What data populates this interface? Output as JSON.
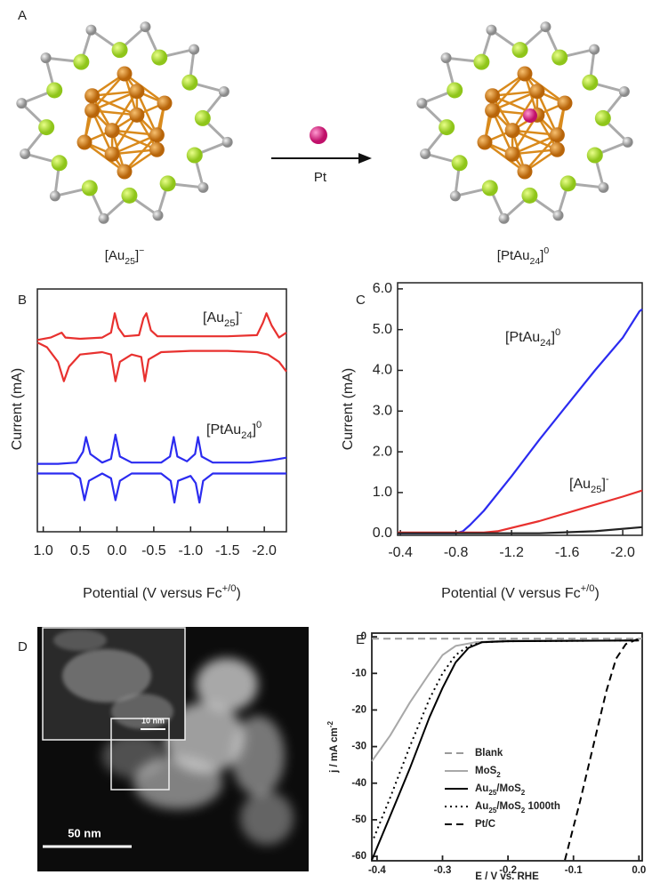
{
  "panel_a": {
    "label": "A",
    "left_label": [
      "[Au",
      "25",
      "]",
      "−"
    ],
    "reagent": "Pt",
    "right_label": [
      "[PtAu",
      "24",
      "]",
      "0"
    ]
  },
  "panel_d": {
    "label": "D",
    "inset_scale": "10 nm",
    "scale": "50 nm"
  },
  "chart_data": [
    {
      "panel": "B",
      "type": "line",
      "ylabel": "Current (mA)",
      "xlabel": [
        "Potential (V versus Fc",
        "+/0",
        ")"
      ],
      "xlim": [
        1.08,
        -2.3
      ],
      "ylim": [
        0,
        100
      ],
      "xticks": [
        {
          "value": 1,
          "label": "1.0"
        },
        0.5,
        {
          "value": 0,
          "label": "0.0"
        },
        -0.5,
        {
          "value": -1,
          "label": "-1.0"
        },
        -1.5,
        {
          "value": -2,
          "label": "-2.0"
        }
      ],
      "series": [
        {
          "color": "#e8312f",
          "x": [
            1.08,
            0.9,
            0.75,
            0.7,
            0.5,
            0.2,
            0.08,
            0.03,
            -0.02,
            -0.1,
            -0.3,
            -0.36,
            -0.4,
            -0.46,
            -0.55,
            -1.0,
            -1.5,
            -1.9,
            -1.98,
            -2.03,
            -2.1,
            -2.2,
            -2.3
          ],
          "values": [
            79,
            80,
            82,
            80,
            79.5,
            80,
            82,
            90,
            84,
            80.5,
            81,
            88,
            90,
            83,
            80.5,
            80.5,
            80.5,
            81,
            86,
            90,
            85,
            80,
            82
          ]
        },
        {
          "color": "#e8312f",
          "x": [
            1.08,
            0.95,
            0.8,
            0.72,
            0.65,
            0.5,
            0.2,
            0.08,
            0.02,
            -0.04,
            -0.2,
            -0.33,
            -0.38,
            -0.43,
            -0.6,
            -1.0,
            -1.5,
            -1.9,
            -2.05,
            -2.2,
            -2.3
          ],
          "values": [
            78,
            76,
            70,
            62,
            68,
            73,
            74,
            73,
            62,
            70,
            73,
            72,
            62,
            71,
            74,
            74.5,
            74.5,
            74,
            73,
            70,
            66
          ]
        },
        {
          "color": "#2b2bf0",
          "x": [
            1.08,
            0.8,
            0.55,
            0.46,
            0.42,
            0.36,
            0.2,
            0.08,
            0.02,
            -0.04,
            -0.2,
            -0.6,
            -0.72,
            -0.77,
            -0.82,
            -0.95,
            -1.06,
            -1.1,
            -1.15,
            -1.3,
            -1.8,
            -2.1,
            -2.3
          ],
          "values": [
            28,
            28,
            28.5,
            33,
            39,
            32,
            28.5,
            30,
            40,
            31,
            28.5,
            28.5,
            31,
            39,
            31,
            29,
            32,
            39,
            31,
            28.5,
            28.5,
            29.5,
            30.5
          ]
        },
        {
          "color": "#2b2bf0",
          "x": [
            1.08,
            0.6,
            0.5,
            0.44,
            0.38,
            0.2,
            0.08,
            0.02,
            -0.04,
            -0.2,
            -0.6,
            -0.73,
            -0.78,
            -0.83,
            -1.0,
            -1.07,
            -1.12,
            -1.17,
            -1.3,
            -2.3
          ],
          "values": [
            24,
            24,
            22,
            13,
            21,
            24,
            22,
            13,
            21,
            24,
            24,
            21,
            12,
            21,
            23,
            20,
            12,
            21,
            24,
            24
          ]
        }
      ],
      "annotations": [
        {
          "text": [
            "[Au",
            "25",
            "]",
            "-"
          ],
          "color": "#e8312f"
        },
        {
          "text": [
            "[PtAu",
            "24",
            "]",
            "0"
          ],
          "color": "#2b2bf0"
        }
      ]
    },
    {
      "panel": "C",
      "type": "line",
      "ylabel": "Current (mA)",
      "xlabel": [
        "Potential (V versus Fc",
        "+/0",
        ")"
      ],
      "xlim": [
        -0.38,
        -2.14
      ],
      "ylim": [
        -0.05,
        6.15
      ],
      "xticks": [
        -0.4,
        -0.8,
        -1.2,
        -1.6,
        {
          "value": -2,
          "label": "-2.0"
        }
      ],
      "yticks": [
        {
          "value": 0,
          "label": "0.0"
        },
        {
          "value": 1,
          "label": "1.0"
        },
        {
          "value": 2,
          "label": "2.0"
        },
        {
          "value": 3,
          "label": "3.0"
        },
        {
          "value": 4,
          "label": "4.0"
        },
        {
          "value": 5,
          "label": "5.0"
        },
        {
          "value": 6,
          "label": "6.0"
        }
      ],
      "series": [
        {
          "color": "#2b2bf0",
          "x": [
            -0.38,
            -0.8,
            -0.85,
            -0.9,
            -1.0,
            -1.2,
            -1.4,
            -1.6,
            -1.8,
            -2.0,
            -2.12,
            -2.14
          ],
          "values": [
            0,
            0,
            0.05,
            0.2,
            0.55,
            1.4,
            2.3,
            3.15,
            4.0,
            4.8,
            5.45,
            5.5
          ]
        },
        {
          "color": "#e8312f",
          "x": [
            -0.38,
            -1.0,
            -1.1,
            -1.4,
            -1.7,
            -2.0,
            -2.14
          ],
          "values": [
            0.02,
            0.02,
            0.05,
            0.3,
            0.6,
            0.9,
            1.05
          ]
        },
        {
          "color": "#222222",
          "x": [
            -0.38,
            -1.4,
            -1.8,
            -2.14
          ],
          "values": [
            0,
            0,
            0.05,
            0.15
          ]
        }
      ],
      "annotations": [
        {
          "text": [
            "[PtAu",
            "24",
            "]",
            "0"
          ],
          "color": "#2b2bf0"
        },
        {
          "text": [
            "[Au",
            "25",
            "]",
            "-"
          ],
          "color": "#e8312f"
        }
      ]
    },
    {
      "panel": "E",
      "type": "line",
      "ylabel": [
        "j / mA cm",
        "-2"
      ],
      "xlabel": "E / V vs. RHE",
      "xlim": [
        -0.408,
        0.005
      ],
      "ylim": [
        -61.2,
        1
      ],
      "xticks": [
        -0.4,
        -0.3,
        -0.2,
        -0.1,
        {
          "value": 0,
          "label": "0.0"
        }
      ],
      "yticks": [
        0,
        -10,
        -20,
        -30,
        -40,
        -50,
        -60
      ],
      "series": [
        {
          "name": [
            "Blank"
          ],
          "color": "#9a9a9a",
          "dash": "dashed",
          "x": [
            -0.408,
            0.005
          ],
          "values": [
            -0.5,
            -0.5
          ]
        },
        {
          "name": [
            "MoS",
            "2"
          ],
          "color": "#a8a8a8",
          "dash": "solid",
          "x": [
            -0.408,
            -0.38,
            -0.35,
            -0.32,
            -0.3,
            -0.28,
            -0.25,
            -0.2,
            0
          ],
          "values": [
            -34,
            -27,
            -18,
            -10,
            -5,
            -2.5,
            -1.5,
            -1,
            -1
          ]
        },
        {
          "name": [
            "Au",
            "25",
            "/MoS",
            "2"
          ],
          "color": "#000000",
          "dash": "solid",
          "x": [
            -0.408,
            -0.38,
            -0.35,
            -0.32,
            -0.3,
            -0.28,
            -0.26,
            -0.24,
            -0.2,
            0
          ],
          "values": [
            -61,
            -49,
            -36,
            -22,
            -14,
            -7,
            -3,
            -1.5,
            -1.2,
            -1
          ]
        },
        {
          "name": [
            "Au",
            "25",
            "/MoS",
            "2",
            " 1000th"
          ],
          "color": "#000000",
          "dash": "dotted",
          "x": [
            -0.405,
            -0.38,
            -0.35,
            -0.32,
            -0.3,
            -0.28,
            -0.26,
            -0.24,
            -0.2,
            0
          ],
          "values": [
            -55,
            -44,
            -30,
            -17,
            -10,
            -5,
            -2.5,
            -1.5,
            -1.2,
            -1
          ]
        },
        {
          "name": [
            "Pt/C"
          ],
          "color": "#000000",
          "dash": "dashed",
          "x": [
            -0.113,
            -0.09,
            -0.07,
            -0.05,
            -0.035,
            -0.02,
            0
          ],
          "values": [
            -61,
            -45,
            -30,
            -15,
            -6,
            -2,
            -0.5
          ]
        }
      ]
    }
  ]
}
